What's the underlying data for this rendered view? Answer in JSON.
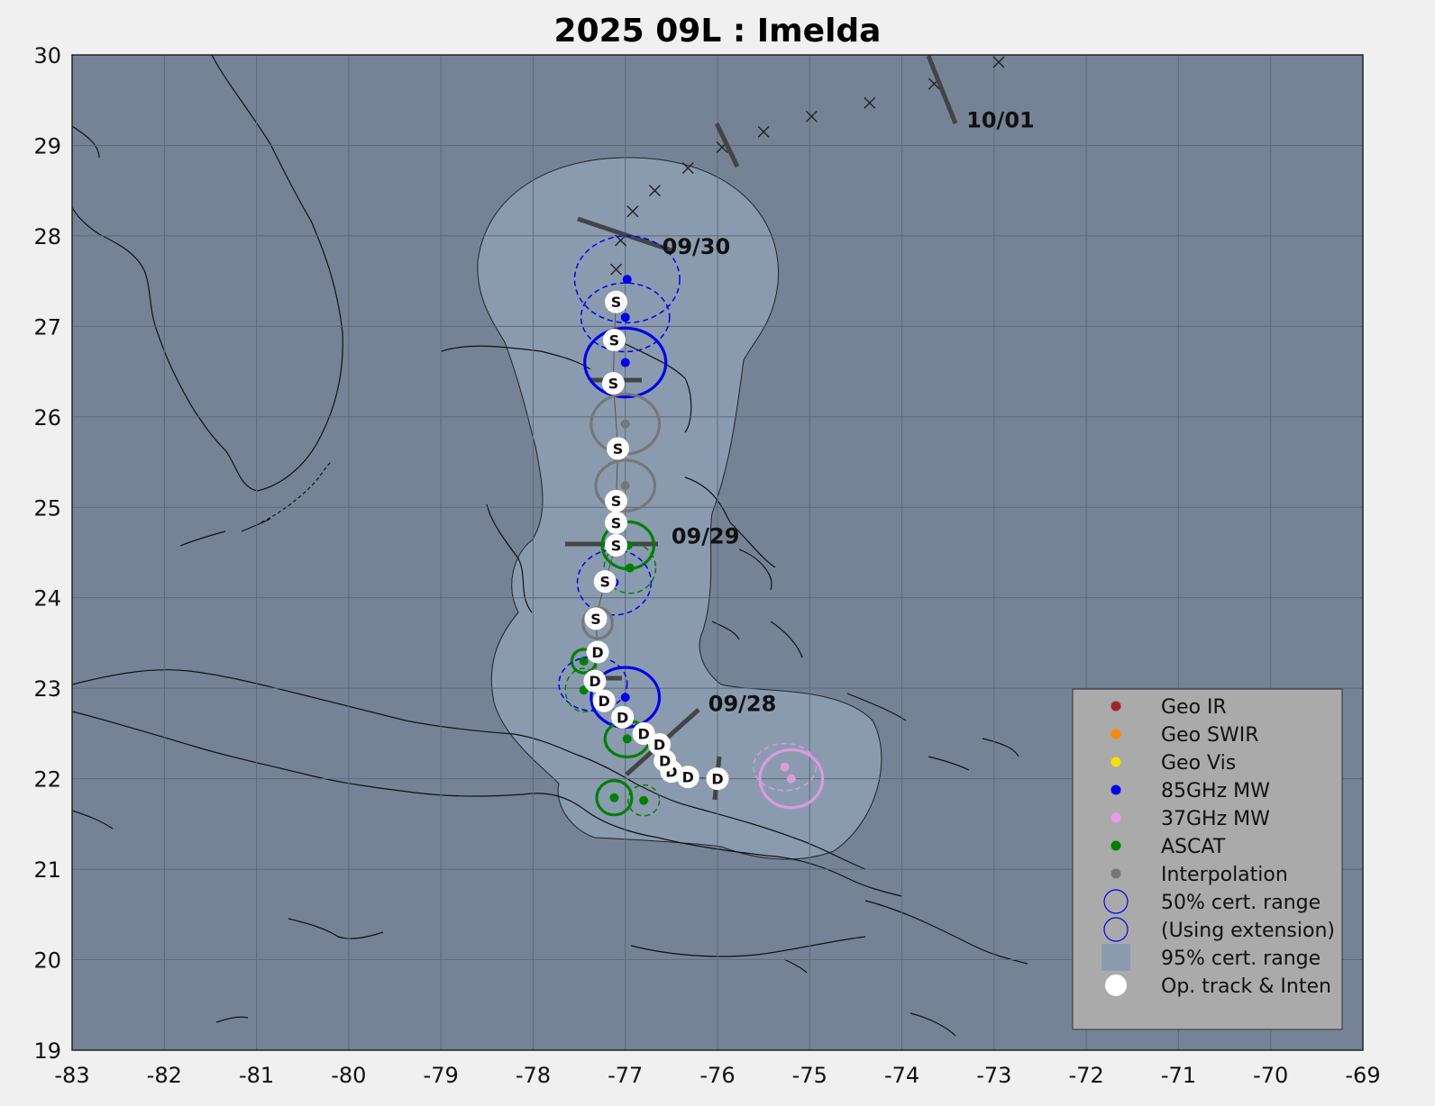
{
  "title": "2025  09L :  Imelda",
  "map": {
    "lon_range": [
      -83,
      -69
    ],
    "lat_range": [
      19,
      30
    ],
    "x_ticks": [
      "-83",
      "-82",
      "-81",
      "-80",
      "-79",
      "-78",
      "-77",
      "-76",
      "-75",
      "-74",
      "-73",
      "-72",
      "-71",
      "-70",
      "-69"
    ],
    "y_ticks": [
      "30",
      "29",
      "28",
      "27",
      "26",
      "25",
      "24",
      "23",
      "22",
      "21",
      "20",
      "19"
    ],
    "grid": true,
    "ocean_color": "#7683959",
    "cone_color": "#8a9bb0"
  },
  "date_labels": [
    {
      "text": "10/01",
      "lon": -73.3,
      "lat": 29.2
    },
    {
      "text": "09/30",
      "lon": -76.6,
      "lat": 27.8
    },
    {
      "text": "09/29",
      "lon": -76.5,
      "lat": 24.6
    },
    {
      "text": "09/28",
      "lon": -76.1,
      "lat": 22.75
    }
  ],
  "forecast_x_points": [
    {
      "lon": -72.95,
      "lat": 29.92
    },
    {
      "lon": -73.65,
      "lat": 29.68
    },
    {
      "lon": -74.35,
      "lat": 29.47
    },
    {
      "lon": -74.98,
      "lat": 29.32
    },
    {
      "lon": -75.5,
      "lat": 29.15
    },
    {
      "lon": -75.95,
      "lat": 28.98
    },
    {
      "lon": -76.32,
      "lat": 28.75
    },
    {
      "lon": -76.68,
      "lat": 28.5
    },
    {
      "lon": -76.92,
      "lat": 28.27
    },
    {
      "lon": -77.05,
      "lat": 27.95
    },
    {
      "lon": -77.1,
      "lat": 27.63
    }
  ],
  "op_track": [
    {
      "lon": -76.0,
      "lat": 22.0,
      "label": "D"
    },
    {
      "lon": -76.32,
      "lat": 22.02,
      "label": "D"
    },
    {
      "lon": -76.5,
      "lat": 22.08,
      "label": "D"
    },
    {
      "lon": -76.57,
      "lat": 22.2,
      "label": "D"
    },
    {
      "lon": -76.63,
      "lat": 22.38,
      "label": "D"
    },
    {
      "lon": -76.8,
      "lat": 22.5,
      "label": "D"
    },
    {
      "lon": -77.03,
      "lat": 22.68,
      "label": "D"
    },
    {
      "lon": -77.23,
      "lat": 22.86,
      "label": "D"
    },
    {
      "lon": -77.33,
      "lat": 23.08,
      "label": "D"
    },
    {
      "lon": -77.3,
      "lat": 23.4,
      "label": "D"
    },
    {
      "lon": -77.32,
      "lat": 23.77,
      "label": "S"
    },
    {
      "lon": -77.22,
      "lat": 24.18,
      "label": "S"
    },
    {
      "lon": -77.1,
      "lat": 24.58,
      "label": "S"
    },
    {
      "lon": -77.1,
      "lat": 24.83,
      "label": "S"
    },
    {
      "lon": -77.1,
      "lat": 25.07,
      "label": "S"
    },
    {
      "lon": -77.08,
      "lat": 25.65,
      "label": "S"
    },
    {
      "lon": -77.13,
      "lat": 26.37,
      "label": "S"
    },
    {
      "lon": -77.12,
      "lat": 26.85,
      "label": "S"
    },
    {
      "lon": -77.1,
      "lat": 27.27,
      "label": "S"
    }
  ],
  "fixes": [
    {
      "type": "85GHz MW",
      "color": "#0000ee",
      "lon": -76.98,
      "lat": 27.52,
      "rx": 0.57,
      "ry": 0.48,
      "dashed": true
    },
    {
      "type": "85GHz MW",
      "color": "#0000ee",
      "lon": -77.0,
      "lat": 27.1,
      "rx": 0.48,
      "ry": 0.38,
      "dashed": true
    },
    {
      "type": "85GHz MW",
      "color": "#0000ee",
      "lon": -77.0,
      "lat": 26.6,
      "rx": 0.44,
      "ry": 0.38,
      "dashed": false
    },
    {
      "type": "Interpolation",
      "color": "#777777",
      "lon": -77.0,
      "lat": 25.92,
      "rx": 0.37,
      "ry": 0.33,
      "dashed": false
    },
    {
      "type": "Interpolation",
      "color": "#777777",
      "lon": -77.0,
      "lat": 25.24,
      "rx": 0.32,
      "ry": 0.28,
      "dashed": false
    },
    {
      "type": "ASCAT",
      "color": "#008000",
      "lon": -76.97,
      "lat": 24.58,
      "rx": 0.28,
      "ry": 0.26,
      "dashed": false
    },
    {
      "type": "ASCAT",
      "color": "#008000",
      "lon": -76.95,
      "lat": 24.33,
      "rx": 0.28,
      "ry": 0.28,
      "dashed": true
    },
    {
      "type": "85GHz MW",
      "color": "#0000ee",
      "lon": -77.12,
      "lat": 24.17,
      "rx": 0.4,
      "ry": 0.36,
      "dashed": true
    },
    {
      "type": "Interpolation",
      "color": "#777777",
      "lon": -77.3,
      "lat": 23.72,
      "rx": 0.16,
      "ry": 0.17,
      "dashed": false
    },
    {
      "type": "ASCAT",
      "color": "#008000",
      "lon": -77.45,
      "lat": 23.3,
      "rx": 0.13,
      "ry": 0.13,
      "dashed": false
    },
    {
      "type": "85GHz MW",
      "color": "#0000ee",
      "lon": -77.35,
      "lat": 23.05,
      "rx": 0.37,
      "ry": 0.3,
      "dashed": true
    },
    {
      "type": "ASCAT",
      "color": "#008000",
      "lon": -77.45,
      "lat": 22.98,
      "rx": 0.2,
      "ry": 0.24,
      "dashed": true
    },
    {
      "type": "85GHz MW",
      "color": "#0000ee",
      "lon": -77.0,
      "lat": 22.9,
      "rx": 0.37,
      "ry": 0.33,
      "dashed": false
    },
    {
      "type": "ASCAT",
      "color": "#008000",
      "lon": -76.98,
      "lat": 22.44,
      "rx": 0.24,
      "ry": 0.2,
      "dashed": false
    },
    {
      "type": "ASCAT",
      "color": "#008000",
      "lon": -77.12,
      "lat": 21.79,
      "rx": 0.19,
      "ry": 0.19,
      "dashed": false
    },
    {
      "type": "ASCAT",
      "color": "#008000",
      "lon": -76.8,
      "lat": 21.76,
      "rx": 0.17,
      "ry": 0.17,
      "dashed": true
    },
    {
      "type": "37GHz MW",
      "color": "#dd99dd",
      "lon": -75.27,
      "lat": 22.13,
      "rx": 0.34,
      "ry": 0.26,
      "dashed": true
    },
    {
      "type": "37GHz MW",
      "color": "#dd99dd",
      "lon": -75.2,
      "lat": 22.0,
      "rx": 0.34,
      "ry": 0.32,
      "dashed": false
    }
  ],
  "legend": {
    "items": [
      {
        "label": "Geo IR",
        "kind": "dot",
        "color": "#a0262e"
      },
      {
        "label": "Geo SWIR",
        "kind": "dot",
        "color": "#ff8800"
      },
      {
        "label": "Geo Vis",
        "kind": "dot",
        "color": "#ffdd00"
      },
      {
        "label": "85GHz MW",
        "kind": "dot",
        "color": "#0000ee"
      },
      {
        "label": "37GHz MW",
        "kind": "dot",
        "color": "#ee99ee"
      },
      {
        "label": "ASCAT",
        "kind": "dot",
        "color": "#008000"
      },
      {
        "label": "Interpolation",
        "kind": "dot",
        "color": "#777777"
      },
      {
        "label": "50% cert. range",
        "kind": "ring",
        "color": "#0000ee"
      },
      {
        "label": "(Using extension)",
        "kind": "ring",
        "color": "#0000ee"
      },
      {
        "label": "95% cert. range",
        "kind": "square",
        "color": "#8a9bb0"
      },
      {
        "label": "Op. track & Inten",
        "kind": "bigdot",
        "color": "#ffffff"
      }
    ]
  }
}
